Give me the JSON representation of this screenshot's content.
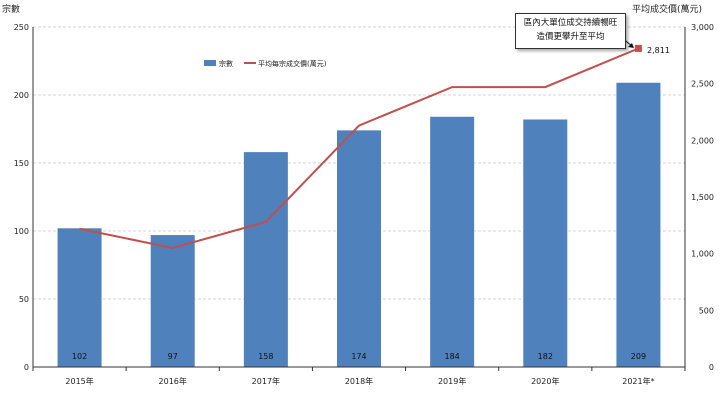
{
  "chart_data": {
    "type": "bar",
    "categories": [
      "2015年",
      "2016年",
      "2017年",
      "2018年",
      "2019年",
      "2020年",
      "2021年*"
    ],
    "series": [
      {
        "name": "宗數",
        "type": "bar",
        "axis": "left",
        "color": "#4f81bd",
        "values": [
          102,
          97,
          158,
          174,
          184,
          182,
          209
        ]
      },
      {
        "name": "平均每宗成交價(萬元)",
        "type": "line",
        "axis": "right",
        "color": "#c0504d",
        "values": [
          1220,
          1050,
          1280,
          2130,
          2470,
          2470,
          2811
        ]
      }
    ],
    "ylabel": "宗數",
    "ylim": [
      0,
      250
    ],
    "yticks": [
      "0",
      "50",
      "100",
      "150",
      "200",
      "250"
    ],
    "y2label": "平均成交價(萬元)",
    "y2lim": [
      0,
      3000
    ],
    "y2ticks": [
      "0",
      "500",
      "1,000",
      "1,500",
      "2,000",
      "2,500",
      "3,000"
    ],
    "bar_labels": [
      "102",
      "97",
      "158",
      "174",
      "184",
      "182",
      "209"
    ],
    "point_label": "2,811",
    "callout": [
      "區內大單位成交持續暢旺",
      "造價更攀升至平均"
    ],
    "legend": [
      "宗數",
      "平均每宗成交價(萬元)"
    ],
    "legend_position": "top-center",
    "grid": true
  }
}
